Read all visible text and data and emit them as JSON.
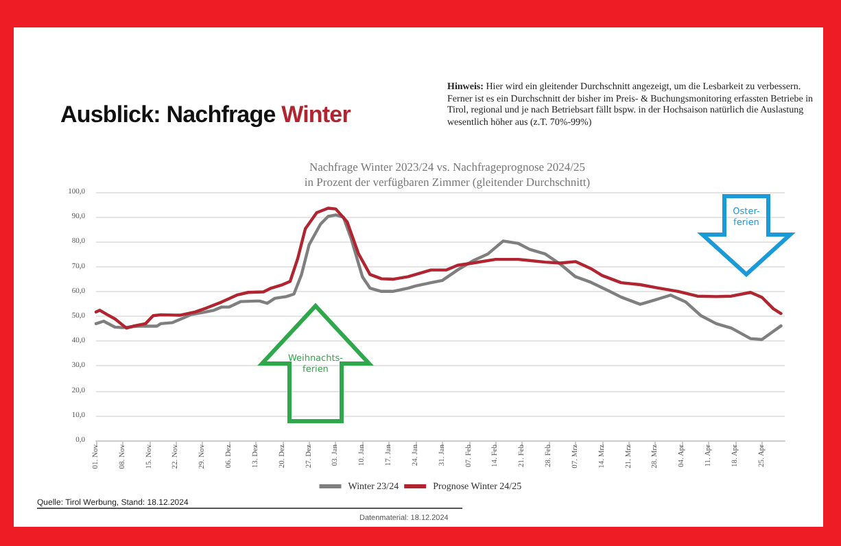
{
  "chart_data": {
    "type": "line",
    "title": "Ausblick: Nachfrage Winter",
    "subtitle": "Nachfrage Winter 2023/24 vs. Nachfrageprognose 2024/25\nin Prozent der verfügbaren Zimmer (gleitender Durchschnitt)",
    "annotations": [
      "Hinweis: Hier wird ein gleitender Durchschnitt angezeigt, um die Lesbarkeit zu verbessern. Ferner ist es ein Durchschnitt der bisher im Preis- & Buchungsmonitoring erfassten Betriebe in Tirol, regional und je nach Betriebsart fällt bspw. in der Hochsaison natürlich die Auslastung wesentlich höher aus (z.T. 70%-99%)",
      "Weihnachts-\nferien",
      "Oster-\nferien",
      "Quelle: Tirol Werbung, Stand: 18.12.2024",
      "Datenmaterial: 18.12.2024"
    ],
    "xlim": [
      "2024-11-01",
      "2025-05-01"
    ],
    "xticks": [
      {
        "value": "2024-11-01",
        "label": "01. Nov"
      },
      {
        "value": "2024-11-08",
        "label": "08. Nov"
      },
      {
        "value": "2024-11-15",
        "label": "15. Nov"
      },
      {
        "value": "2024-11-22",
        "label": "22. Nov"
      },
      {
        "value": "2024-11-29",
        "label": "29. Nov"
      },
      {
        "value": "2024-12-06",
        "label": "06. Dez"
      },
      {
        "value": "2024-12-13",
        "label": "13. Dez"
      },
      {
        "value": "2024-12-20",
        "label": "20. Dez"
      },
      {
        "value": "2024-12-27",
        "label": "27. Dez"
      },
      {
        "value": "2025-01-03",
        "label": "03. Jan"
      },
      {
        "value": "2025-01-10",
        "label": "10. Jan"
      },
      {
        "value": "2025-01-17",
        "label": "17. Jan"
      },
      {
        "value": "2025-01-24",
        "label": "24. Jan"
      },
      {
        "value": "2025-01-31",
        "label": "31. Jan"
      },
      {
        "value": "2025-02-07",
        "label": "07. Feb"
      },
      {
        "value": "2025-02-14",
        "label": "14. Feb"
      },
      {
        "value": "2025-02-21",
        "label": "21. Feb"
      },
      {
        "value": "2025-02-28",
        "label": "28. Feb"
      },
      {
        "value": "2025-03-07",
        "label": "07. Mrz"
      },
      {
        "value": "2025-03-14",
        "label": "14. Mrz"
      },
      {
        "value": "2025-03-21",
        "label": "21. Mrz"
      },
      {
        "value": "2025-03-28",
        "label": "28. Mrz"
      },
      {
        "value": "2025-04-04",
        "label": "04. Apr"
      },
      {
        "value": "2025-04-11",
        "label": "11. Apr"
      },
      {
        "value": "2025-04-18",
        "label": "18. Apr"
      },
      {
        "value": "2025-04-25",
        "label": "25. Apr"
      }
    ],
    "ylim": [
      0,
      100
    ],
    "yticks": [
      {
        "value": 0,
        "label": "0,0"
      },
      {
        "value": 10,
        "label": "10,0"
      },
      {
        "value": 20,
        "label": "20,0"
      },
      {
        "value": 30,
        "label": "30,0"
      },
      {
        "value": 40,
        "label": "40,0"
      },
      {
        "value": 50,
        "label": "50,0"
      },
      {
        "value": 60,
        "label": "60,0"
      },
      {
        "value": 70,
        "label": "70,0"
      },
      {
        "value": 80,
        "label": "80,0"
      },
      {
        "value": 90,
        "label": "90,0"
      },
      {
        "value": 100,
        "label": "100,0"
      }
    ],
    "grid": "y",
    "legend": "bottom",
    "marker": "none",
    "series": [
      {
        "name": "Winter 23/24",
        "color": "#7f7f7f",
        "x": [
          "2024-11-01",
          "2024-11-03",
          "2024-11-06",
          "2024-11-08",
          "2024-11-12",
          "2024-11-15",
          "2024-11-17",
          "2024-11-18",
          "2024-11-21",
          "2024-11-24",
          "2024-11-26",
          "2024-11-29",
          "2024-12-02",
          "2024-12-04",
          "2024-12-06",
          "2024-12-09",
          "2024-12-13",
          "2024-12-14",
          "2024-12-16",
          "2024-12-18",
          "2024-12-21",
          "2024-12-23",
          "2024-12-25",
          "2024-12-27",
          "2024-12-30",
          "2025-01-01",
          "2025-01-03",
          "2025-01-05",
          "2025-01-07",
          "2025-01-10",
          "2025-01-12",
          "2025-01-15",
          "2025-01-18",
          "2025-01-22",
          "2025-01-24",
          "2025-01-28",
          "2025-01-31",
          "2025-02-04",
          "2025-02-08",
          "2025-02-12",
          "2025-02-16",
          "2025-02-20",
          "2025-02-23",
          "2025-02-27",
          "2025-03-03",
          "2025-03-07",
          "2025-03-11",
          "2025-03-16",
          "2025-03-19",
          "2025-03-24",
          "2025-03-28",
          "2025-04-01",
          "2025-04-05",
          "2025-04-09",
          "2025-04-13",
          "2025-04-17",
          "2025-04-22",
          "2025-04-25",
          "2025-04-27",
          "2025-04-30"
        ],
        "values": [
          47.0,
          48.0,
          45.6,
          45.4,
          46.0,
          46.0,
          46.0,
          47.0,
          47.4,
          49.3,
          50.7,
          51.5,
          52.4,
          53.7,
          53.7,
          55.9,
          56.1,
          56.1,
          55.2,
          57.2,
          57.9,
          58.9,
          66.8,
          78.8,
          87.1,
          90.2,
          90.8,
          89.9,
          81.5,
          65.9,
          61.3,
          60.0,
          60.0,
          61.3,
          62.2,
          63.5,
          64.4,
          68.6,
          72.3,
          75.1,
          80.3,
          79.3,
          76.9,
          75.1,
          71.0,
          65.9,
          63.7,
          60.0,
          57.7,
          54.8,
          56.6,
          58.5,
          55.7,
          50.2,
          47.0,
          45.2,
          41.0,
          40.6,
          42.8,
          46.1
        ]
      },
      {
        "name": "Prognose Winter 24/25",
        "color": "#b0252f",
        "x": [
          "2024-11-01",
          "2024-11-02",
          "2024-11-04",
          "2024-11-06",
          "2024-11-09",
          "2024-11-11",
          "2024-11-14",
          "2024-11-16",
          "2024-11-18",
          "2024-11-23",
          "2024-11-27",
          "2024-11-30",
          "2024-12-04",
          "2024-12-08",
          "2024-12-11",
          "2024-12-15",
          "2024-12-17",
          "2024-12-20",
          "2024-12-22",
          "2024-12-24",
          "2024-12-26",
          "2024-12-29",
          "2025-01-01",
          "2025-01-03",
          "2025-01-06",
          "2025-01-09",
          "2025-01-12",
          "2025-01-15",
          "2025-01-18",
          "2025-01-22",
          "2025-01-28",
          "2025-02-01",
          "2025-02-04",
          "2025-02-08",
          "2025-02-14",
          "2025-02-20",
          "2025-02-27",
          "2025-03-03",
          "2025-03-07",
          "2025-03-11",
          "2025-03-14",
          "2025-03-19",
          "2025-03-24",
          "2025-03-29",
          "2025-04-03",
          "2025-04-08",
          "2025-04-13",
          "2025-04-17",
          "2025-04-22",
          "2025-04-25",
          "2025-04-28",
          "2025-04-30"
        ],
        "values": [
          51.7,
          52.4,
          50.6,
          48.9,
          45.2,
          46.1,
          47.0,
          50.2,
          50.6,
          50.4,
          51.7,
          53.3,
          55.7,
          58.5,
          59.6,
          59.8,
          61.3,
          62.7,
          64.0,
          73.2,
          85.2,
          91.7,
          93.5,
          93.2,
          88.0,
          75.1,
          66.8,
          65.1,
          64.9,
          65.9,
          68.6,
          68.6,
          70.5,
          71.4,
          72.9,
          72.9,
          71.8,
          71.4,
          72.0,
          69.2,
          66.4,
          63.5,
          62.7,
          61.3,
          60.0,
          58.1,
          57.9,
          58.1,
          59.6,
          57.6,
          53.0,
          51.1
        ]
      }
    ]
  }
}
